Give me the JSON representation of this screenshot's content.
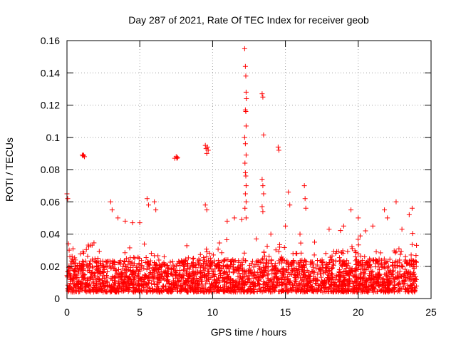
{
  "chart_data": {
    "type": "scatter",
    "title": "Day 287 of 2021, Rate Of TEC Index for receiver geob",
    "xlabel": "GPS time / hours",
    "ylabel": "ROTI / TECUs",
    "xlim": [
      0,
      25
    ],
    "ylim": [
      0,
      0.16
    ],
    "x_ticks": [
      0,
      5,
      10,
      15,
      20,
      25
    ],
    "x_tick_labels": [
      "0",
      "5",
      "10",
      "15",
      "20",
      "25"
    ],
    "y_ticks": [
      0,
      0.02,
      0.04,
      0.06,
      0.08,
      0.1,
      0.12,
      0.14,
      0.16
    ],
    "y_tick_labels": [
      "0",
      "0.02",
      "0.04",
      "0.06",
      "0.08",
      "0.1",
      "0.12",
      "0.14",
      "0.16"
    ],
    "grid": true,
    "marker": "+",
    "color": "#ff0000",
    "series": [
      {
        "name": "ROTI",
        "points": [
          [
            0.0,
            0.065
          ],
          [
            0.05,
            0.062
          ],
          [
            0.1,
            0.034
          ],
          [
            0.15,
            0.03
          ],
          [
            0.2,
            0.026
          ],
          [
            1.05,
            0.089
          ],
          [
            1.1,
            0.0885
          ],
          [
            1.15,
            0.089
          ],
          [
            1.2,
            0.088
          ],
          [
            3.0,
            0.06
          ],
          [
            3.1,
            0.055
          ],
          [
            3.5,
            0.05
          ],
          [
            4.0,
            0.048
          ],
          [
            4.5,
            0.047
          ],
          [
            5.0,
            0.047
          ],
          [
            5.5,
            0.062
          ],
          [
            5.6,
            0.058
          ],
          [
            6.0,
            0.06
          ],
          [
            6.1,
            0.055
          ],
          [
            7.4,
            0.087
          ],
          [
            7.5,
            0.088
          ],
          [
            7.55,
            0.087
          ],
          [
            7.6,
            0.0875
          ],
          [
            9.5,
            0.095
          ],
          [
            9.55,
            0.093
          ],
          [
            9.6,
            0.09
          ],
          [
            9.65,
            0.094
          ],
          [
            9.7,
            0.092
          ],
          [
            9.5,
            0.058
          ],
          [
            9.6,
            0.055
          ],
          [
            11.0,
            0.048
          ],
          [
            11.5,
            0.05
          ],
          [
            12.0,
            0.049
          ],
          [
            12.2,
            0.155
          ],
          [
            12.25,
            0.144
          ],
          [
            12.28,
            0.138
          ],
          [
            12.3,
            0.128
          ],
          [
            12.32,
            0.124
          ],
          [
            12.25,
            0.117
          ],
          [
            12.28,
            0.116
          ],
          [
            12.3,
            0.107
          ],
          [
            12.2,
            0.1
          ],
          [
            12.25,
            0.096
          ],
          [
            12.3,
            0.089
          ],
          [
            12.22,
            0.084
          ],
          [
            12.25,
            0.078
          ],
          [
            12.28,
            0.076
          ],
          [
            12.3,
            0.07
          ],
          [
            12.25,
            0.065
          ],
          [
            12.3,
            0.06
          ],
          [
            12.22,
            0.056
          ],
          [
            12.3,
            0.05
          ],
          [
            13.4,
            0.127
          ],
          [
            13.45,
            0.125
          ],
          [
            13.5,
            0.1015
          ],
          [
            13.4,
            0.074
          ],
          [
            13.45,
            0.07
          ],
          [
            13.5,
            0.065
          ],
          [
            13.4,
            0.057
          ],
          [
            13.45,
            0.054
          ],
          [
            14.5,
            0.094
          ],
          [
            14.55,
            0.092
          ],
          [
            15.2,
            0.066
          ],
          [
            15.3,
            0.058
          ],
          [
            16.3,
            0.07
          ],
          [
            16.35,
            0.062
          ],
          [
            16.4,
            0.056
          ],
          [
            13.0,
            0.037
          ],
          [
            14.0,
            0.04
          ],
          [
            15.0,
            0.045
          ],
          [
            16.0,
            0.04
          ],
          [
            17.0,
            0.035
          ],
          [
            18.0,
            0.043
          ],
          [
            19.0,
            0.045
          ],
          [
            19.5,
            0.055
          ],
          [
            20.0,
            0.05
          ],
          [
            20.5,
            0.042
          ],
          [
            21.0,
            0.045
          ],
          [
            21.8,
            0.055
          ],
          [
            22.0,
            0.05
          ],
          [
            22.6,
            0.06
          ],
          [
            23.0,
            0.043
          ],
          [
            23.5,
            0.052
          ],
          [
            23.7,
            0.056
          ],
          [
            24.0,
            0.033
          ]
        ]
      }
    ]
  }
}
